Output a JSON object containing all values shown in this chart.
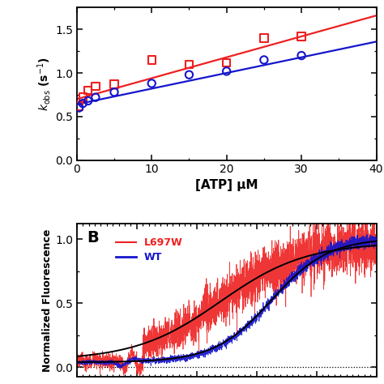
{
  "panel_A": {
    "red_squares_x": [
      0.3,
      0.8,
      1.5,
      2.5,
      5.0,
      10.0,
      15.0,
      20.0,
      25.0,
      30.0
    ],
    "red_squares_y": [
      0.62,
      0.72,
      0.8,
      0.85,
      0.87,
      1.15,
      1.1,
      1.12,
      1.4,
      1.42
    ],
    "blue_circles_x": [
      0.3,
      0.8,
      1.5,
      2.5,
      5.0,
      10.0,
      15.0,
      20.0,
      25.0,
      30.0
    ],
    "blue_circles_y": [
      0.6,
      0.65,
      0.68,
      0.72,
      0.78,
      0.88,
      0.98,
      1.02,
      1.15,
      1.2
    ],
    "red_line_slope": 0.024,
    "red_line_intercept": 0.7,
    "blue_line_slope": 0.018,
    "blue_line_intercept": 0.64,
    "xlabel": "[ATP] μM",
    "ylabel": "$k_{\\mathrm{obs}}$ (s$^{-1}$)",
    "xlim": [
      0,
      40
    ],
    "ylim": [
      0.0,
      1.75
    ],
    "yticks": [
      0.0,
      0.5,
      1.0,
      1.5
    ],
    "xticks": [
      0,
      10,
      20,
      30,
      40
    ],
    "red_color": "#EE2020",
    "blue_color": "#1515CC"
  },
  "panel_B": {
    "ylabel": "Normalized Fluorescence",
    "ylim": [
      -0.07,
      1.12
    ],
    "yticks": [
      0.0,
      0.5,
      1.0
    ],
    "red_color": "#EE2020",
    "blue_color": "#1515CC",
    "black_color": "#000000",
    "legend_L697W": "L697W",
    "legend_WT": "WT",
    "panel_label": "B"
  }
}
